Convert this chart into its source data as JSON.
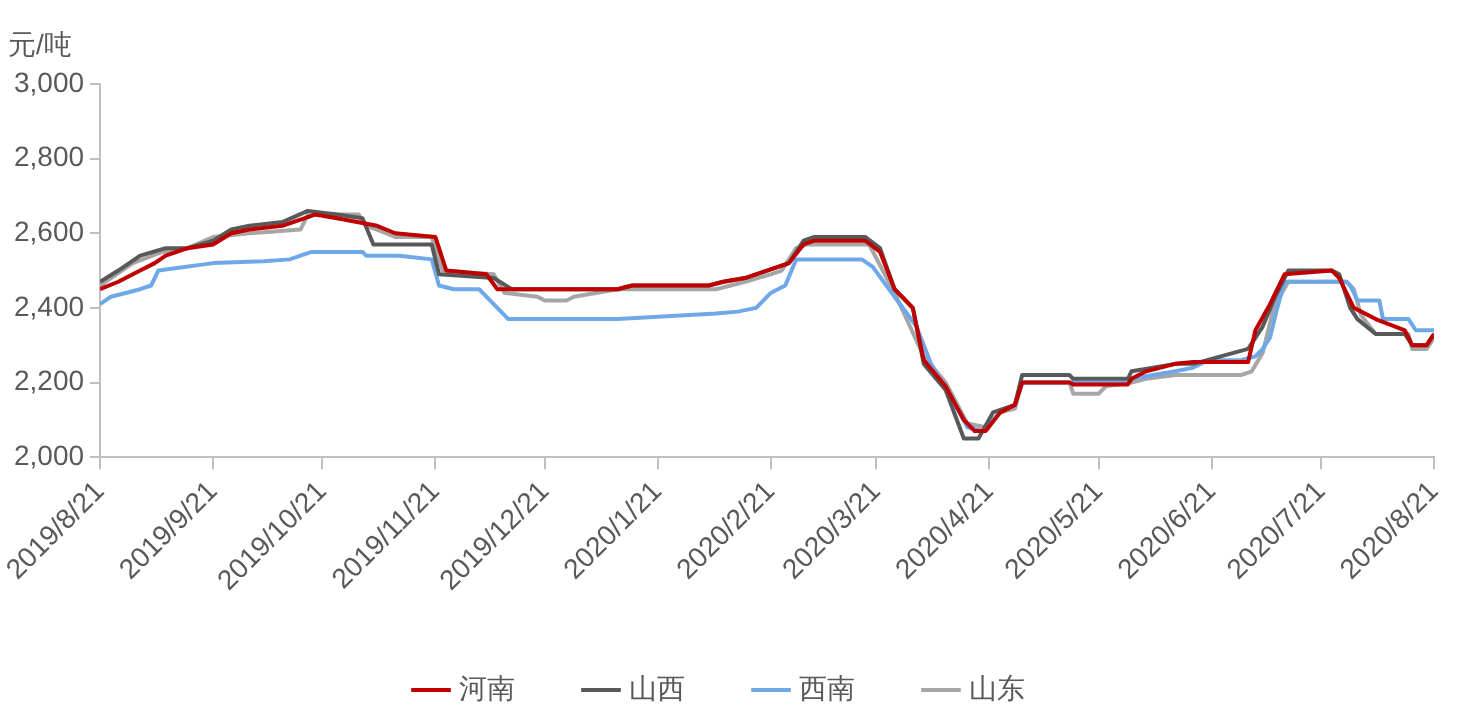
{
  "chart_data": {
    "type": "line",
    "ylabel": "元/吨",
    "legend": "bottom",
    "grid": false,
    "marker": "none",
    "line_style": "solid",
    "xlim": [
      "2019-08-21",
      "2020-08-21"
    ],
    "xticks": [
      {
        "value": "2019-08-21",
        "label": "2019/8/21"
      },
      {
        "value": "2019-09-21",
        "label": "2019/9/21"
      },
      {
        "value": "2019-10-21",
        "label": "2019/10/21"
      },
      {
        "value": "2019-11-21",
        "label": "2019/11/21"
      },
      {
        "value": "2019-12-21",
        "label": "2019/12/21"
      },
      {
        "value": "2020-01-21",
        "label": "2020/1/21"
      },
      {
        "value": "2020-02-21",
        "label": "2020/2/21"
      },
      {
        "value": "2020-03-21",
        "label": "2020/3/21"
      },
      {
        "value": "2020-04-21",
        "label": "2020/4/21"
      },
      {
        "value": "2020-05-21",
        "label": "2020/5/21"
      },
      {
        "value": "2020-06-21",
        "label": "2020/6/21"
      },
      {
        "value": "2020-07-21",
        "label": "2020/7/21"
      },
      {
        "value": "2020-08-21",
        "label": "2020/8/21"
      }
    ],
    "ylim": [
      2000,
      3000
    ],
    "yticks": [
      {
        "value": 2000,
        "label": "2,000"
      },
      {
        "value": 2200,
        "label": "2,200"
      },
      {
        "value": 2400,
        "label": "2,400"
      },
      {
        "value": 2600,
        "label": "2,600"
      },
      {
        "value": 2800,
        "label": "2,800"
      },
      {
        "value": 3000,
        "label": "3,000"
      }
    ],
    "series": [
      {
        "name": "河南",
        "color": "#c00000",
        "x": [
          "2019-08-21",
          "2019-08-26",
          "2019-09-01",
          "2019-09-05",
          "2019-09-08",
          "2019-09-14",
          "2019-09-21",
          "2019-09-26",
          "2019-10-01",
          "2019-10-10",
          "2019-10-16",
          "2019-10-19",
          "2019-10-25",
          "2019-11-05",
          "2019-11-10",
          "2019-11-21",
          "2019-11-24",
          "2019-12-05",
          "2019-12-08",
          "2020-01-10",
          "2020-01-14",
          "2020-02-04",
          "2020-02-08",
          "2020-02-14",
          "2020-02-20",
          "2020-02-26",
          "2020-03-01",
          "2020-03-04",
          "2020-03-18",
          "2020-03-22",
          "2020-03-26",
          "2020-03-31",
          "2020-04-03",
          "2020-04-09",
          "2020-04-14",
          "2020-04-17",
          "2020-04-20",
          "2020-04-24",
          "2020-04-28",
          "2020-04-30",
          "2020-05-13",
          "2020-05-14",
          "2020-05-29",
          "2020-05-30",
          "2020-06-03",
          "2020-06-11",
          "2020-06-16",
          "2020-07-01",
          "2020-07-03",
          "2020-07-07",
          "2020-07-11",
          "2020-07-24",
          "2020-07-26",
          "2020-07-30",
          "2020-08-05",
          "2020-08-13",
          "2020-08-15",
          "2020-08-19",
          "2020-08-21"
        ],
        "values": [
          2450,
          2470,
          2500,
          2520,
          2540,
          2560,
          2570,
          2600,
          2610,
          2620,
          2640,
          2650,
          2640,
          2620,
          2600,
          2590,
          2500,
          2490,
          2450,
          2450,
          2460,
          2460,
          2470,
          2480,
          2500,
          2520,
          2570,
          2580,
          2580,
          2550,
          2450,
          2400,
          2260,
          2190,
          2100,
          2070,
          2070,
          2120,
          2140,
          2200,
          2200,
          2195,
          2195,
          2210,
          2230,
          2250,
          2255,
          2255,
          2340,
          2410,
          2490,
          2500,
          2480,
          2400,
          2370,
          2340,
          2300,
          2300,
          2330
        ]
      },
      {
        "name": "山西",
        "color": "#595959",
        "x": [
          "2019-08-21",
          "2019-08-26",
          "2019-09-01",
          "2019-09-08",
          "2019-09-14",
          "2019-09-21",
          "2019-09-26",
          "2019-10-01",
          "2019-10-10",
          "2019-10-17",
          "2019-10-25",
          "2019-11-01",
          "2019-11-04",
          "2019-11-20",
          "2019-11-22",
          "2019-12-07",
          "2019-12-12",
          "2020-01-10",
          "2020-01-14",
          "2020-02-04",
          "2020-02-08",
          "2020-02-14",
          "2020-02-20",
          "2020-02-26",
          "2020-03-01",
          "2020-03-04",
          "2020-03-18",
          "2020-03-22",
          "2020-03-26",
          "2020-03-31",
          "2020-04-03",
          "2020-04-09",
          "2020-04-14",
          "2020-04-18",
          "2020-04-22",
          "2020-04-28",
          "2020-04-30",
          "2020-05-13",
          "2020-05-14",
          "2020-05-29",
          "2020-05-30",
          "2020-06-02",
          "2020-06-11",
          "2020-06-16",
          "2020-07-01",
          "2020-07-05",
          "2020-07-08",
          "2020-07-12",
          "2020-07-24",
          "2020-07-26",
          "2020-07-29",
          "2020-07-31",
          "2020-08-05",
          "2020-08-13",
          "2020-08-15",
          "2020-08-19",
          "2020-08-21"
        ],
        "values": [
          2470,
          2500,
          2540,
          2560,
          2560,
          2580,
          2610,
          2620,
          2630,
          2660,
          2650,
          2640,
          2570,
          2570,
          2490,
          2480,
          2450,
          2450,
          2460,
          2460,
          2470,
          2480,
          2500,
          2520,
          2580,
          2590,
          2590,
          2560,
          2450,
          2400,
          2250,
          2180,
          2050,
          2050,
          2120,
          2140,
          2220,
          2220,
          2210,
          2210,
          2230,
          2235,
          2250,
          2250,
          2290,
          2350,
          2420,
          2500,
          2500,
          2490,
          2400,
          2370,
          2330,
          2330,
          2300,
          2300,
          2330
        ]
      },
      {
        "name": "西南",
        "color": "#6fa8e8",
        "x": [
          "2019-08-21",
          "2019-08-24",
          "2019-09-01",
          "2019-09-04",
          "2019-09-06",
          "2019-09-21",
          "2019-10-05",
          "2019-10-12",
          "2019-10-15",
          "2019-10-18",
          "2019-11-01",
          "2019-11-02",
          "2019-11-11",
          "2019-11-20",
          "2019-11-22",
          "2019-11-26",
          "2019-12-03",
          "2019-12-06",
          "2019-12-11",
          "2020-01-10",
          "2020-02-06",
          "2020-02-12",
          "2020-02-17",
          "2020-02-21",
          "2020-02-25",
          "2020-02-28",
          "2020-03-17",
          "2020-03-20",
          "2020-03-26",
          "2020-04-01",
          "2020-04-05",
          "2020-04-11",
          "2020-04-15",
          "2020-04-19",
          "2020-04-24",
          "2020-04-28",
          "2020-04-30",
          "2020-05-13",
          "2020-05-29",
          "2020-05-30",
          "2020-06-11",
          "2020-06-16",
          "2020-06-20",
          "2020-06-29",
          "2020-07-03",
          "2020-07-05",
          "2020-07-07",
          "2020-07-09",
          "2020-07-11",
          "2020-07-28",
          "2020-07-29",
          "2020-07-31",
          "2020-08-06",
          "2020-08-07",
          "2020-08-14",
          "2020-08-16",
          "2020-08-21"
        ],
        "values": [
          2410,
          2430,
          2450,
          2460,
          2500,
          2520,
          2525,
          2530,
          2540,
          2550,
          2550,
          2540,
          2540,
          2530,
          2460,
          2450,
          2450,
          2420,
          2370,
          2370,
          2385,
          2390,
          2400,
          2440,
          2460,
          2530,
          2530,
          2510,
          2430,
          2350,
          2250,
          2150,
          2080,
          2070,
          2120,
          2140,
          2200,
          2200,
          2200,
          2210,
          2230,
          2240,
          2260,
          2260,
          2270,
          2290,
          2320,
          2400,
          2470,
          2470,
          2460,
          2420,
          2420,
          2370,
          2370,
          2340,
          2340
        ]
      },
      {
        "name": "山东",
        "color": "#a6a6a6",
        "x": [
          "2019-08-21",
          "2019-08-30",
          "2019-09-07",
          "2019-09-14",
          "2019-09-21",
          "2019-10-01",
          "2019-10-15",
          "2019-10-17",
          "2019-10-31",
          "2019-11-02",
          "2019-11-05",
          "2019-11-10",
          "2019-11-20",
          "2019-11-23",
          "2019-12-07",
          "2019-12-10",
          "2019-12-19",
          "2019-12-21",
          "2019-12-27",
          "2019-12-29",
          "2020-01-10",
          "2020-02-06",
          "2020-02-10",
          "2020-02-14",
          "2020-02-21",
          "2020-02-24",
          "2020-02-28",
          "2020-03-02",
          "2020-03-19",
          "2020-03-26",
          "2020-04-03",
          "2020-04-09",
          "2020-04-15",
          "2020-04-20",
          "2020-04-24",
          "2020-04-28",
          "2020-04-30",
          "2020-05-13",
          "2020-05-14",
          "2020-05-21",
          "2020-05-23",
          "2020-05-30",
          "2020-06-03",
          "2020-06-11",
          "2020-06-29",
          "2020-07-02",
          "2020-07-05",
          "2020-07-08",
          "2020-07-12",
          "2020-07-28",
          "2020-07-30",
          "2020-08-01",
          "2020-08-05",
          "2020-08-14",
          "2020-08-15",
          "2020-08-19",
          "2020-08-21"
        ],
        "values": [
          2460,
          2520,
          2550,
          2560,
          2590,
          2600,
          2610,
          2650,
          2650,
          2620,
          2610,
          2590,
          2590,
          2500,
          2490,
          2440,
          2430,
          2420,
          2420,
          2430,
          2450,
          2450,
          2460,
          2470,
          2490,
          2500,
          2560,
          2570,
          2570,
          2440,
          2270,
          2200,
          2090,
          2080,
          2120,
          2130,
          2200,
          2200,
          2170,
          2170,
          2190,
          2200,
          2210,
          2220,
          2220,
          2230,
          2280,
          2400,
          2470,
          2470,
          2450,
          2380,
          2330,
          2330,
          2290,
          2290,
          2320
        ]
      }
    ]
  }
}
